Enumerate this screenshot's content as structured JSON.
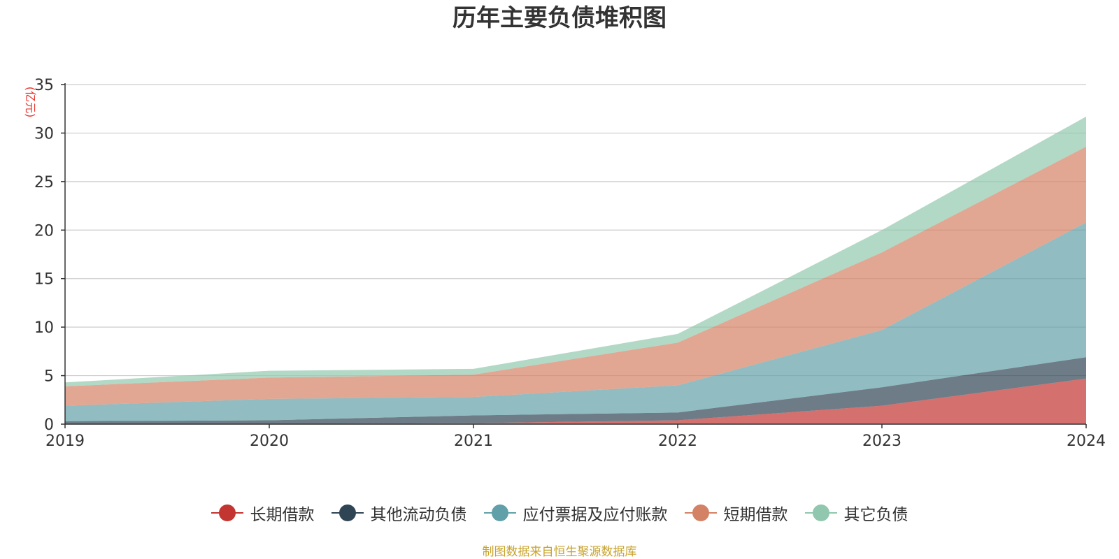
{
  "chart_data": {
    "type": "area",
    "stacked": true,
    "title": "历年主要负债堆积图",
    "ylabel": "(亿元)",
    "xlabel": "",
    "x": [
      "2019",
      "2020",
      "2021",
      "2022",
      "2023",
      "2024"
    ],
    "ylim": [
      0,
      35
    ],
    "yticks": [
      0,
      5,
      10,
      15,
      20,
      25,
      30,
      35
    ],
    "grid": true,
    "legend_position": "bottom",
    "series": [
      {
        "name": "长期借款",
        "color": "#c23531",
        "values": [
          0.0,
          0.0,
          0.1,
          0.4,
          1.9,
          4.7
        ]
      },
      {
        "name": "其他流动负债",
        "color": "#2f4554",
        "values": [
          0.3,
          0.4,
          0.8,
          0.8,
          1.9,
          2.2
        ]
      },
      {
        "name": "应付票据及应付账款",
        "color": "#61a0a8",
        "values": [
          1.6,
          2.2,
          1.9,
          2.8,
          5.9,
          13.9
        ]
      },
      {
        "name": "短期借款",
        "color": "#d48265",
        "values": [
          2.0,
          2.2,
          2.3,
          4.4,
          8.0,
          7.8
        ]
      },
      {
        "name": "其它负债",
        "color": "#91c7ae",
        "values": [
          0.4,
          0.7,
          0.6,
          0.9,
          2.3,
          3.1
        ]
      }
    ]
  },
  "source_note": "制图数据来自恒生聚源数据库"
}
